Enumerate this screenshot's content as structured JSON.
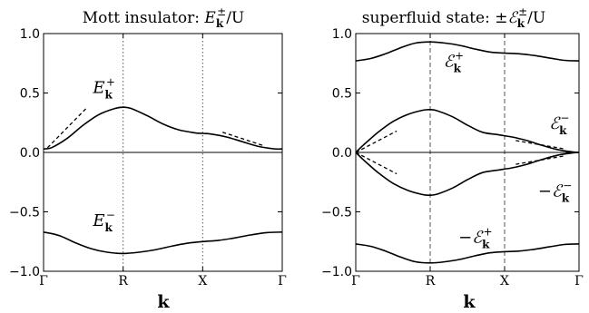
{
  "chart_data": [
    {
      "type": "line",
      "title": "Mott insulator: E_k^±/U",
      "title_parts": {
        "text": "Mott insulator: ",
        "sym": "E",
        "sub": "k",
        "sup": "±",
        "tail": "/U"
      },
      "xlabel": "k",
      "ylabel": "",
      "ylim": [
        -1.0,
        1.0
      ],
      "xlim": [
        0,
        3
      ],
      "x_ticks": [
        {
          "x": 0,
          "label": "Γ"
        },
        {
          "x": 1,
          "label": "R"
        },
        {
          "x": 2,
          "label": "X"
        },
        {
          "x": 3,
          "label": "Γ"
        }
      ],
      "y_ticks": [
        {
          "y": 1.0,
          "label": "1.0"
        },
        {
          "y": 0.5,
          "label": "0.5"
        },
        {
          "y": 0.0,
          "label": "0.0"
        },
        {
          "y": -0.5,
          "label": "−0.5"
        },
        {
          "y": -1.0,
          "label": "−1.0"
        }
      ],
      "vlines": {
        "x": [
          1,
          2
        ],
        "style": "dotted"
      },
      "zero_line": true,
      "series": [
        {
          "x": [
            0,
            0.1,
            0.3,
            0.5,
            0.7,
            0.9,
            1.0,
            1.1,
            1.3,
            1.5,
            1.7,
            1.9,
            2.0,
            2.1,
            2.3,
            2.5,
            2.7,
            2.9,
            3.0
          ],
          "values": [
            0.03,
            0.04,
            0.12,
            0.23,
            0.32,
            0.37,
            0.38,
            0.37,
            0.31,
            0.24,
            0.19,
            0.165,
            0.16,
            0.155,
            0.13,
            0.09,
            0.05,
            0.03,
            0.03
          ]
        },
        {
          "x": [
            0,
            0.2,
            0.4,
            0.6,
            0.8,
            1.0,
            1.2,
            1.4,
            1.6,
            1.8,
            2.0,
            2.2,
            2.4,
            2.6,
            2.8,
            3.0
          ],
          "values": [
            -0.67,
            -0.7,
            -0.76,
            -0.81,
            -0.84,
            -0.85,
            -0.84,
            -0.82,
            -0.79,
            -0.765,
            -0.75,
            -0.74,
            -0.72,
            -0.695,
            -0.675,
            -0.67
          ]
        }
      ],
      "dashed": [
        {
          "x": [
            0.05,
            0.55
          ],
          "values": [
            0.04,
            0.38
          ]
        },
        {
          "x": [
            2.25,
            2.75
          ],
          "values": [
            0.17,
            0.06
          ]
        }
      ],
      "annotations": [
        {
          "sym": "E",
          "sub": "k",
          "sup": "+",
          "x": 0.62,
          "y": 0.5
        },
        {
          "sym": "E",
          "sub": "k",
          "sup": "−",
          "x": 0.62,
          "y": -0.62
        }
      ]
    },
    {
      "type": "line",
      "title": "superfluid state: ±ℰ_k^±/U",
      "title_parts": {
        "text": "superfluid state: ±",
        "sym": "ℰ",
        "sub": "k",
        "sup": "±",
        "tail": "/U"
      },
      "xlabel": "k",
      "ylabel": "",
      "ylim": [
        -1.0,
        1.0
      ],
      "xlim": [
        0,
        3
      ],
      "x_ticks": [
        {
          "x": 0,
          "label": "Γ"
        },
        {
          "x": 1,
          "label": "R"
        },
        {
          "x": 2,
          "label": "X"
        },
        {
          "x": 3,
          "label": "Γ"
        }
      ],
      "y_ticks": [
        {
          "y": 1.0,
          "label": "1.0"
        },
        {
          "y": 0.5,
          "label": "0.5"
        },
        {
          "y": 0.0,
          "label": "0.0"
        },
        {
          "y": -0.5,
          "label": "−0.5"
        },
        {
          "y": -1.0,
          "label": "−1.0"
        }
      ],
      "vlines": {
        "x": [
          1,
          2
        ],
        "style": "dashed"
      },
      "zero_line": true,
      "series": [
        {
          "x": [
            0,
            0.2,
            0.4,
            0.6,
            0.8,
            1.0,
            1.2,
            1.4,
            1.6,
            1.8,
            2.0,
            2.2,
            2.4,
            2.6,
            2.8,
            3.0
          ],
          "values": [
            0.77,
            0.79,
            0.83,
            0.88,
            0.92,
            0.93,
            0.92,
            0.9,
            0.87,
            0.845,
            0.835,
            0.83,
            0.815,
            0.795,
            0.775,
            0.77
          ]
        },
        {
          "x": [
            0,
            0.1,
            0.3,
            0.5,
            0.7,
            0.9,
            1.0,
            1.1,
            1.3,
            1.5,
            1.7,
            1.9,
            2.0,
            2.1,
            2.3,
            2.5,
            2.7,
            2.9,
            3.0
          ],
          "values": [
            0.0,
            0.06,
            0.17,
            0.26,
            0.32,
            0.355,
            0.36,
            0.35,
            0.3,
            0.23,
            0.17,
            0.15,
            0.14,
            0.13,
            0.1,
            0.06,
            0.025,
            0.005,
            0.0
          ]
        },
        {
          "x": [
            0,
            0.1,
            0.3,
            0.5,
            0.7,
            0.9,
            1.0,
            1.1,
            1.3,
            1.5,
            1.7,
            1.9,
            2.0,
            2.1,
            2.3,
            2.5,
            2.7,
            2.9,
            3.0
          ],
          "values": [
            0.0,
            -0.06,
            -0.17,
            -0.26,
            -0.32,
            -0.355,
            -0.36,
            -0.35,
            -0.3,
            -0.23,
            -0.17,
            -0.15,
            -0.14,
            -0.13,
            -0.1,
            -0.06,
            -0.025,
            -0.005,
            0.0
          ]
        },
        {
          "x": [
            0,
            0.2,
            0.4,
            0.6,
            0.8,
            1.0,
            1.2,
            1.4,
            1.6,
            1.8,
            2.0,
            2.2,
            2.4,
            2.6,
            2.8,
            3.0
          ],
          "values": [
            -0.77,
            -0.79,
            -0.83,
            -0.88,
            -0.92,
            -0.93,
            -0.92,
            -0.9,
            -0.87,
            -0.845,
            -0.835,
            -0.83,
            -0.815,
            -0.795,
            -0.775,
            -0.77
          ]
        }
      ],
      "dashed": [
        {
          "x": [
            0.0,
            0.55
          ],
          "values": [
            0.0,
            0.18
          ]
        },
        {
          "x": [
            0.0,
            0.55
          ],
          "values": [
            0.0,
            -0.18
          ]
        },
        {
          "x": [
            2.15,
            2.8
          ],
          "values": [
            0.1,
            0.03
          ]
        },
        {
          "x": [
            2.15,
            2.8
          ],
          "values": [
            -0.1,
            -0.03
          ]
        }
      ],
      "annotations": [
        {
          "sym": "ℰ",
          "sub": "k",
          "sup": "+",
          "x": 1.18,
          "y": 0.72
        },
        {
          "sym": "ℰ",
          "sub": "k",
          "sup": "−",
          "x": 2.6,
          "y": 0.2
        },
        {
          "sym": "−ℰ",
          "sub": "k",
          "sup": "−",
          "x": 2.45,
          "y": -0.37
        },
        {
          "sym": "−ℰ",
          "sub": "k",
          "sup": "+",
          "x": 1.38,
          "y": -0.76
        }
      ]
    }
  ]
}
